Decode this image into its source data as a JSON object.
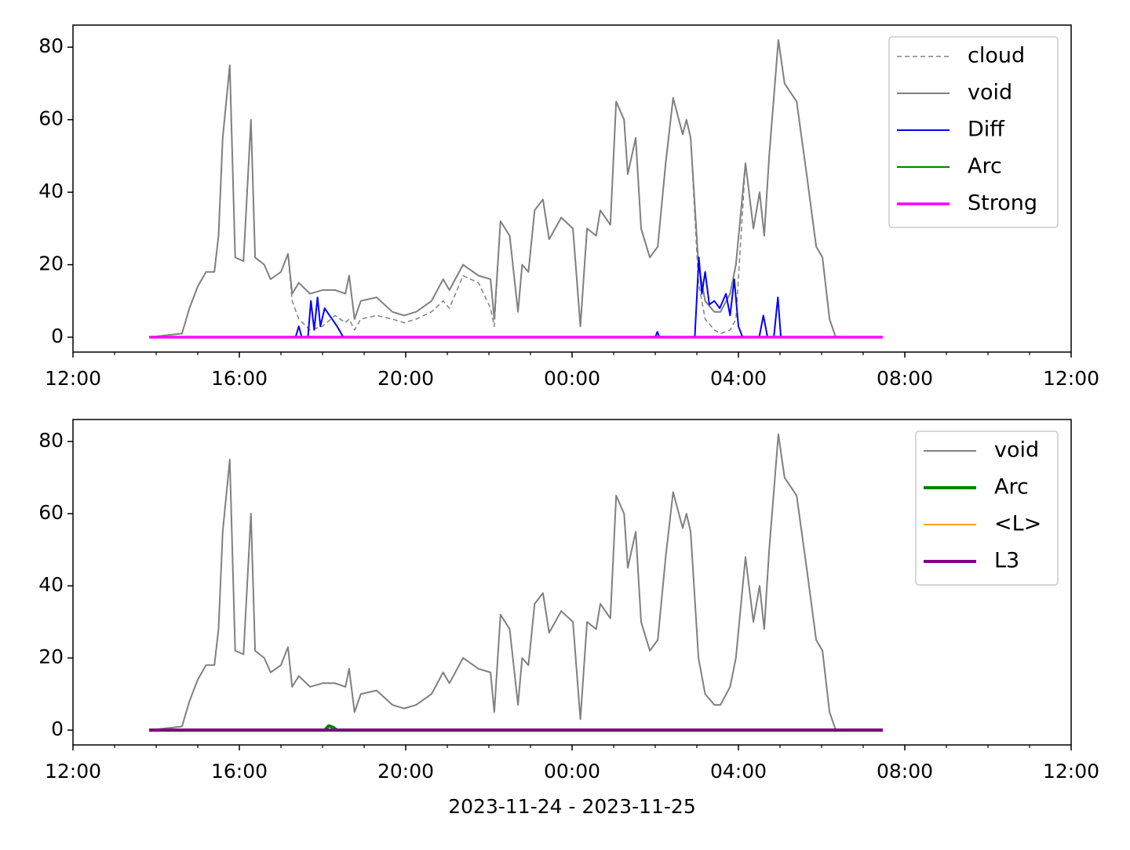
{
  "chart_data": [
    {
      "type": "line",
      "legend": "upper right",
      "xlim": [
        12,
        36
      ],
      "ylim": [
        -4.1,
        86.1
      ],
      "xticks": [
        {
          "value": 12,
          "label": "12:00"
        },
        {
          "value": 16,
          "label": "16:00"
        },
        {
          "value": 20,
          "label": "20:00"
        },
        {
          "value": 24,
          "label": "00:00"
        },
        {
          "value": 28,
          "label": "04:00"
        },
        {
          "value": 32,
          "label": "08:00"
        },
        {
          "value": 36,
          "label": "12:00"
        }
      ],
      "xminorticks": [
        13,
        14,
        15,
        17,
        18,
        19,
        21,
        22,
        23,
        25,
        26,
        27,
        29,
        30,
        31,
        33,
        34,
        35
      ],
      "yticks": [
        0,
        20,
        40,
        60,
        80
      ],
      "x": [
        13.83,
        14.62,
        14.8,
        15.0,
        15.2,
        15.4,
        15.5,
        15.6,
        15.77,
        15.9,
        16.1,
        16.28,
        16.38,
        16.6,
        16.75,
        17.0,
        17.17,
        17.27,
        17.43,
        17.7,
        18.0,
        18.3,
        18.55,
        18.64,
        18.77,
        18.92,
        19.3,
        19.68,
        19.96,
        20.25,
        20.62,
        20.9,
        21.05,
        21.38,
        21.75,
        22.04,
        22.13,
        22.28,
        22.5,
        22.7,
        22.8,
        22.95,
        23.1,
        23.3,
        23.45,
        23.74,
        24.02,
        24.2,
        24.36,
        24.58,
        24.68,
        24.92,
        25.06,
        25.25,
        25.34,
        25.53,
        25.66,
        25.87,
        26.06,
        26.25,
        26.43,
        26.66,
        26.75,
        26.85,
        27.04,
        27.2,
        27.42,
        27.57,
        27.8,
        27.94,
        28.17,
        28.36,
        28.51,
        28.62,
        28.74,
        28.96,
        29.11,
        29.4,
        29.64,
        29.87,
        30.02,
        30.19,
        30.34,
        31.47
      ],
      "series": [
        {
          "name": "cloud",
          "color": "#808080",
          "width": 1.5,
          "dash": true,
          "values": [
            0,
            1,
            8,
            14,
            18,
            18,
            28,
            55,
            75,
            22,
            21,
            60,
            22,
            20,
            16,
            18,
            23,
            10,
            5,
            2,
            3,
            6,
            4,
            5,
            2,
            5,
            6,
            5,
            4,
            5,
            7,
            10,
            8,
            17,
            15,
            8,
            3,
            32,
            28,
            7,
            20,
            18,
            35,
            38,
            27,
            33,
            30,
            3,
            30,
            28,
            35,
            31,
            65,
            60,
            45,
            55,
            30,
            22,
            25,
            48,
            66,
            56,
            60,
            55,
            15,
            5,
            2,
            1,
            2,
            5,
            48,
            30,
            40,
            28,
            50,
            82,
            70,
            65,
            45,
            25,
            22,
            5,
            0,
            0
          ]
        },
        {
          "name": "void",
          "color": "#808080",
          "width": 2,
          "values": [
            0,
            1,
            8,
            14,
            18,
            18,
            28,
            55,
            75,
            22,
            21,
            60,
            22,
            20,
            16,
            18,
            23,
            12,
            15,
            12,
            13,
            13,
            12,
            17,
            5,
            10,
            11,
            7,
            6,
            7,
            10,
            16,
            13,
            20,
            17,
            16,
            5,
            32,
            28,
            7,
            20,
            18,
            35,
            38,
            27,
            33,
            30,
            3,
            30,
            28,
            35,
            31,
            65,
            60,
            45,
            55,
            30,
            22,
            25,
            48,
            66,
            56,
            60,
            55,
            20,
            10,
            7,
            7,
            12,
            20,
            48,
            30,
            40,
            28,
            50,
            82,
            70,
            65,
            45,
            25,
            22,
            5,
            0,
            0
          ]
        },
        {
          "name": "Diff",
          "color": "#0000ff",
          "width": 2,
          "x": [
            13.83,
            17.35,
            17.43,
            17.5,
            17.65,
            17.72,
            17.8,
            17.88,
            17.95,
            18.05,
            18.17,
            18.35,
            18.5,
            26.0,
            26.05,
            26.1,
            26.95,
            27.05,
            27.12,
            27.2,
            27.3,
            27.42,
            27.55,
            27.7,
            27.8,
            27.9,
            28.0,
            28.1,
            28.5,
            28.6,
            28.7,
            28.85,
            28.95,
            29.02,
            31.47
          ],
          "values": [
            0,
            0,
            3,
            0,
            0,
            10,
            2,
            11,
            3,
            8,
            6,
            3,
            0,
            0,
            1.5,
            0,
            0,
            22,
            12,
            18,
            9,
            10,
            8,
            12,
            6,
            16,
            3,
            0,
            0,
            6,
            0,
            0,
            11,
            0,
            0
          ]
        },
        {
          "name": "Arc",
          "color": "#008000",
          "width": 2,
          "x": [
            13.83,
            31.47
          ],
          "values": [
            0,
            0
          ]
        },
        {
          "name": "Strong",
          "color": "#ff00ff",
          "width": 3.5,
          "x": [
            13.83,
            31.47
          ],
          "values": [
            0,
            0
          ]
        }
      ]
    },
    {
      "type": "line",
      "legend": "upper right",
      "xlabel": "2023-11-24 - 2023-11-25",
      "xlim": [
        12,
        36
      ],
      "ylim": [
        -4.1,
        86.1
      ],
      "xticks": [
        {
          "value": 12,
          "label": "12:00"
        },
        {
          "value": 16,
          "label": "16:00"
        },
        {
          "value": 20,
          "label": "20:00"
        },
        {
          "value": 24,
          "label": "00:00"
        },
        {
          "value": 28,
          "label": "04:00"
        },
        {
          "value": 32,
          "label": "08:00"
        },
        {
          "value": 36,
          "label": "12:00"
        }
      ],
      "xminorticks": [
        13,
        14,
        15,
        17,
        18,
        19,
        21,
        22,
        23,
        25,
        26,
        27,
        29,
        30,
        31,
        33,
        34,
        35
      ],
      "yticks": [
        0,
        20,
        40,
        60,
        80
      ],
      "x": [
        13.83,
        14.62,
        14.8,
        15.0,
        15.2,
        15.4,
        15.5,
        15.6,
        15.77,
        15.9,
        16.1,
        16.28,
        16.38,
        16.6,
        16.75,
        17.0,
        17.17,
        17.27,
        17.43,
        17.7,
        18.0,
        18.3,
        18.55,
        18.64,
        18.77,
        18.92,
        19.3,
        19.68,
        19.96,
        20.25,
        20.62,
        20.9,
        21.05,
        21.38,
        21.75,
        22.04,
        22.13,
        22.28,
        22.5,
        22.7,
        22.8,
        22.95,
        23.1,
        23.3,
        23.45,
        23.74,
        24.02,
        24.2,
        24.36,
        24.58,
        24.68,
        24.92,
        25.06,
        25.25,
        25.34,
        25.53,
        25.66,
        25.87,
        26.06,
        26.25,
        26.43,
        26.66,
        26.75,
        26.85,
        27.04,
        27.2,
        27.42,
        27.57,
        27.8,
        27.94,
        28.17,
        28.36,
        28.51,
        28.62,
        28.74,
        28.96,
        29.11,
        29.4,
        29.64,
        29.87,
        30.02,
        30.19,
        30.34,
        31.47
      ],
      "series": [
        {
          "name": "void",
          "color": "#808080",
          "width": 2,
          "values": [
            0,
            1,
            8,
            14,
            18,
            18,
            28,
            55,
            75,
            22,
            21,
            60,
            22,
            20,
            16,
            18,
            23,
            12,
            15,
            12,
            13,
            13,
            12,
            17,
            5,
            10,
            11,
            7,
            6,
            7,
            10,
            16,
            13,
            20,
            17,
            16,
            5,
            32,
            28,
            7,
            20,
            18,
            35,
            38,
            27,
            33,
            30,
            3,
            30,
            28,
            35,
            31,
            65,
            60,
            45,
            55,
            30,
            22,
            25,
            48,
            66,
            56,
            60,
            55,
            20,
            10,
            7,
            7,
            12,
            20,
            48,
            30,
            40,
            28,
            50,
            82,
            70,
            65,
            45,
            25,
            22,
            5,
            0,
            0
          ]
        },
        {
          "name": "Arc",
          "color": "#008000",
          "width": 4,
          "x": [
            13.83,
            18.05,
            18.15,
            18.25,
            18.35,
            31.47
          ],
          "values": [
            0,
            0,
            1.2,
            0.8,
            0,
            0
          ]
        },
        {
          "name": "<L>",
          "color": "#ffa500",
          "width": 2,
          "x": [
            13.83,
            31.47
          ],
          "values": [
            0,
            0
          ]
        },
        {
          "name": "L3",
          "color": "#800080",
          "width": 4,
          "x": [
            13.83,
            31.47
          ],
          "values": [
            0,
            0
          ]
        }
      ]
    }
  ]
}
